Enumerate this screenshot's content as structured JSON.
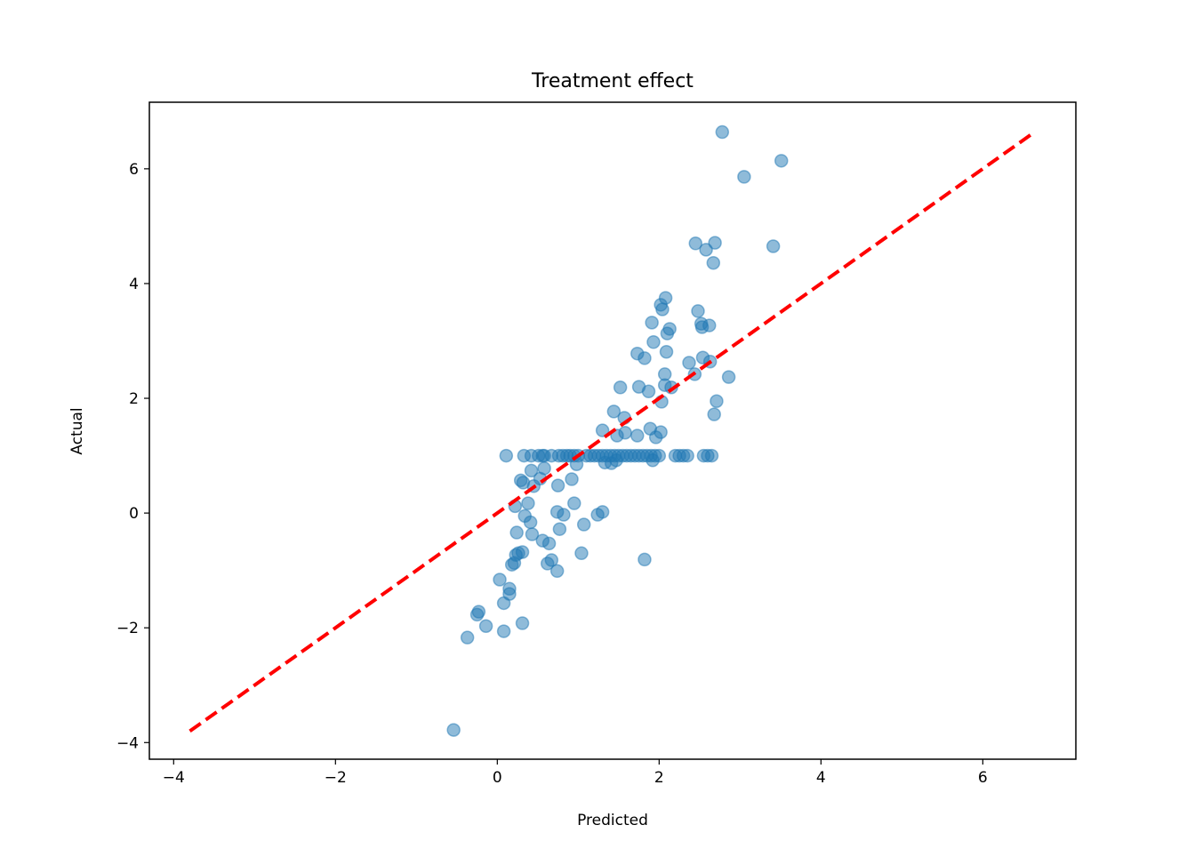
{
  "chart_data": {
    "type": "scatter",
    "title": "Treatment effect",
    "xlabel": "Predicted",
    "ylabel": "Actual",
    "xlim": [
      -4.3,
      7.15
    ],
    "ylim": [
      -4.29,
      7.16
    ],
    "xticks": [
      -4,
      -2,
      0,
      2,
      4,
      6
    ],
    "yticks": [
      -4,
      -2,
      0,
      2,
      4,
      6
    ],
    "grid": false,
    "point_color": "#1f77b4",
    "point_alpha": 0.5,
    "reference_line": {
      "x": [
        -3.8,
        6.62
      ],
      "y": [
        -3.8,
        6.62
      ],
      "color": "#ff0000",
      "style": "dashed"
    },
    "points": [
      [
        -0.54,
        -3.78
      ],
      [
        -0.37,
        -2.17
      ],
      [
        -0.25,
        -1.77
      ],
      [
        -0.23,
        -1.72
      ],
      [
        -0.14,
        -1.97
      ],
      [
        0.03,
        -1.16
      ],
      [
        0.08,
        -2.06
      ],
      [
        0.08,
        -1.57
      ],
      [
        0.15,
        -1.32
      ],
      [
        0.15,
        -1.41
      ],
      [
        0.18,
        -0.9
      ],
      [
        0.21,
        -0.87
      ],
      [
        0.23,
        -0.73
      ],
      [
        0.26,
        -0.7
      ],
      [
        0.31,
        -0.68
      ],
      [
        0.31,
        -1.92
      ],
      [
        0.24,
        -0.34
      ],
      [
        0.22,
        0.12
      ],
      [
        0.29,
        0.57
      ],
      [
        0.32,
        0.53
      ],
      [
        0.34,
        -0.05
      ],
      [
        0.38,
        0.17
      ],
      [
        0.41,
        -0.16
      ],
      [
        0.43,
        -0.37
      ],
      [
        0.42,
        0.74
      ],
      [
        0.45,
        0.47
      ],
      [
        0.53,
        0.6
      ],
      [
        0.58,
        0.78
      ],
      [
        0.56,
        -0.48
      ],
      [
        0.62,
        -0.88
      ],
      [
        0.64,
        -0.53
      ],
      [
        0.67,
        -0.82
      ],
      [
        0.74,
        -1.01
      ],
      [
        0.74,
        0.02
      ],
      [
        0.75,
        0.48
      ],
      [
        0.77,
        -0.28
      ],
      [
        0.82,
        -0.03
      ],
      [
        0.92,
        0.59
      ],
      [
        0.95,
        0.17
      ],
      [
        0.98,
        0.85
      ],
      [
        1.04,
        -0.7
      ],
      [
        1.07,
        -0.2
      ],
      [
        1.24,
        -0.03
      ],
      [
        1.3,
        0.02
      ],
      [
        1.3,
        1.44
      ],
      [
        1.33,
        0.88
      ],
      [
        1.41,
        0.87
      ],
      [
        1.44,
        1.77
      ],
      [
        1.48,
        1.35
      ],
      [
        1.52,
        2.19
      ],
      [
        1.57,
        1.66
      ],
      [
        1.58,
        1.4
      ],
      [
        1.73,
        1.35
      ],
      [
        1.75,
        2.2
      ],
      [
        1.73,
        2.78
      ],
      [
        1.82,
        2.7
      ],
      [
        1.82,
        -0.81
      ],
      [
        1.87,
        2.12
      ],
      [
        1.89,
        1.47
      ],
      [
        1.91,
        3.32
      ],
      [
        1.93,
        2.98
      ],
      [
        1.96,
        1.32
      ],
      [
        2.02,
        1.41
      ],
      [
        2.02,
        3.63
      ],
      [
        2.03,
        1.94
      ],
      [
        2.04,
        3.55
      ],
      [
        2.07,
        2.42
      ],
      [
        2.07,
        2.23
      ],
      [
        2.08,
        3.75
      ],
      [
        2.09,
        2.81
      ],
      [
        2.1,
        3.13
      ],
      [
        2.13,
        3.21
      ],
      [
        2.15,
        2.19
      ],
      [
        2.37,
        2.62
      ],
      [
        2.44,
        2.42
      ],
      [
        2.45,
        4.7
      ],
      [
        2.48,
        3.52
      ],
      [
        2.52,
        3.3
      ],
      [
        2.53,
        3.24
      ],
      [
        2.54,
        2.71
      ],
      [
        2.58,
        4.59
      ],
      [
        2.62,
        3.27
      ],
      [
        2.63,
        2.64
      ],
      [
        2.67,
        4.36
      ],
      [
        2.68,
        1.72
      ],
      [
        2.69,
        4.71
      ],
      [
        2.71,
        1.95
      ],
      [
        2.78,
        6.64
      ],
      [
        2.86,
        2.37
      ],
      [
        3.05,
        5.86
      ],
      [
        3.41,
        4.65
      ],
      [
        3.51,
        6.14
      ],
      [
        0.11,
        1.0
      ],
      [
        0.33,
        1.0
      ],
      [
        0.42,
        1.0
      ],
      [
        0.51,
        1.0
      ],
      [
        0.56,
        1.0
      ],
      [
        0.58,
        1.0
      ],
      [
        0.67,
        1.0
      ],
      [
        0.76,
        1.0
      ],
      [
        0.81,
        1.0
      ],
      [
        0.86,
        1.0
      ],
      [
        0.9,
        1.0
      ],
      [
        0.95,
        1.0
      ],
      [
        1.0,
        1.0
      ],
      [
        1.1,
        1.0
      ],
      [
        1.15,
        1.0
      ],
      [
        1.2,
        1.0
      ],
      [
        1.25,
        1.0
      ],
      [
        1.3,
        1.0
      ],
      [
        1.35,
        1.0
      ],
      [
        1.4,
        1.0
      ],
      [
        1.45,
        1.0
      ],
      [
        1.5,
        1.0
      ],
      [
        1.55,
        1.0
      ],
      [
        1.6,
        1.0
      ],
      [
        1.65,
        1.0
      ],
      [
        1.7,
        1.0
      ],
      [
        1.75,
        1.0
      ],
      [
        1.8,
        1.0
      ],
      [
        1.85,
        1.0
      ],
      [
        1.9,
        1.0
      ],
      [
        1.95,
        1.0
      ],
      [
        2.0,
        1.0
      ],
      [
        2.2,
        1.0
      ],
      [
        2.25,
        1.0
      ],
      [
        2.3,
        1.0
      ],
      [
        2.35,
        1.0
      ],
      [
        2.55,
        1.0
      ],
      [
        2.6,
        1.0
      ],
      [
        2.65,
        1.0
      ],
      [
        1.92,
        0.92
      ],
      [
        1.47,
        0.92
      ]
    ]
  }
}
